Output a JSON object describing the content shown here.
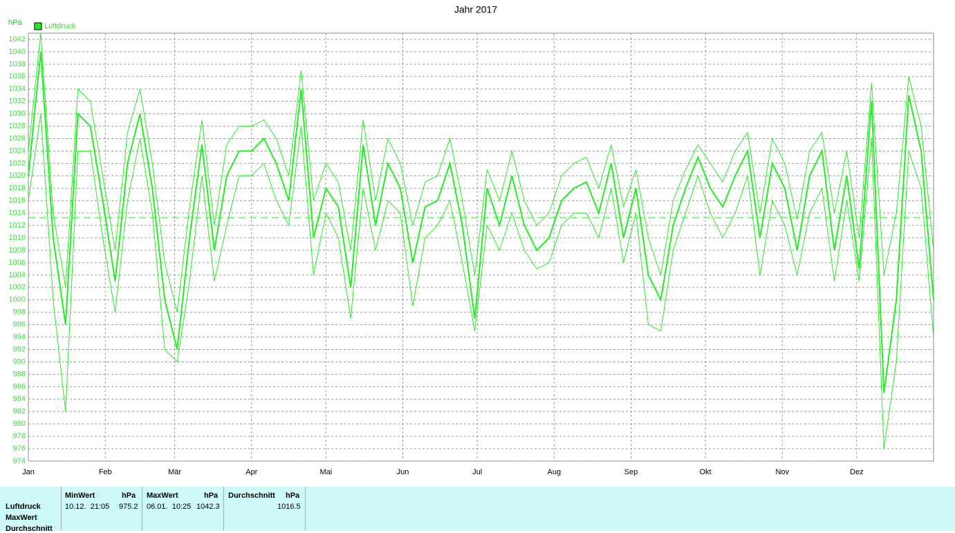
{
  "chart_data": {
    "type": "line",
    "title": "Jahr 2017",
    "ylabel": "hPa",
    "x": [
      0,
      5,
      10,
      15,
      20,
      25,
      30,
      35,
      40,
      45,
      50,
      55,
      60,
      65,
      70,
      75,
      80,
      85,
      90,
      95,
      100,
      105,
      110,
      115,
      120,
      125,
      130,
      135,
      140,
      145,
      150,
      155,
      160,
      165,
      170,
      175,
      180,
      185,
      190,
      195,
      200,
      205,
      210,
      215,
      220,
      225,
      230,
      235,
      240,
      245,
      250,
      255,
      260,
      265,
      270,
      275,
      280,
      285,
      290,
      295,
      300,
      305,
      310,
      315,
      320,
      325,
      330,
      335,
      340,
      345,
      350,
      355,
      360,
      365
    ],
    "series": [
      {
        "name": "Luftdruck",
        "color": "#22ee22",
        "linewidth": 2,
        "values": [
          1020,
          1040,
          1010,
          996,
          1030,
          1028,
          1016,
          1003,
          1022,
          1030,
          1018,
          1000,
          992,
          1010,
          1025,
          1008,
          1020,
          1024,
          1024,
          1026,
          1022,
          1016,
          1034,
          1010,
          1018,
          1015,
          1002,
          1025,
          1012,
          1022,
          1018,
          1006,
          1015,
          1016,
          1022,
          1012,
          997,
          1018,
          1012,
          1020,
          1012,
          1008,
          1010,
          1016,
          1018,
          1019,
          1014,
          1022,
          1010,
          1018,
          1004,
          1000,
          1012,
          1018,
          1023,
          1018,
          1015,
          1020,
          1024,
          1010,
          1022,
          1018,
          1008,
          1020,
          1024,
          1008,
          1020,
          1005,
          1032,
          985,
          1000,
          1033,
          1024,
          1000
        ]
      },
      {
        "color": "#22ee22",
        "linewidth": 1,
        "values": [
          1024,
          1043,
          1014,
          1002,
          1034,
          1032,
          1020,
          1008,
          1027,
          1034,
          1022,
          1006,
          998,
          1015,
          1029,
          1012,
          1025,
          1028,
          1028,
          1029,
          1026,
          1020,
          1037,
          1016,
          1022,
          1019,
          1008,
          1029,
          1016,
          1026,
          1022,
          1012,
          1019,
          1020,
          1026,
          1016,
          1004,
          1021,
          1016,
          1024,
          1016,
          1012,
          1014,
          1020,
          1022,
          1023,
          1018,
          1025,
          1015,
          1021,
          1010,
          1004,
          1016,
          1021,
          1025,
          1022,
          1019,
          1024,
          1027,
          1014,
          1026,
          1022,
          1013,
          1024,
          1027,
          1014,
          1024,
          1010,
          1035,
          1004,
          1014,
          1036,
          1028,
          1008
        ]
      },
      {
        "color": "#22ee22",
        "linewidth": 1,
        "values": [
          1016,
          1030,
          1000,
          982,
          1024,
          1024,
          1010,
          998,
          1016,
          1026,
          1014,
          992,
          990,
          1003,
          1020,
          1003,
          1012,
          1020,
          1020,
          1022,
          1016,
          1012,
          1028,
          1004,
          1014,
          1010,
          997,
          1018,
          1008,
          1016,
          1014,
          999,
          1010,
          1012,
          1016,
          1006,
          995,
          1012,
          1008,
          1014,
          1008,
          1005,
          1006,
          1012,
          1014,
          1014,
          1010,
          1018,
          1006,
          1014,
          996,
          995,
          1008,
          1014,
          1020,
          1014,
          1010,
          1014,
          1020,
          1004,
          1016,
          1012,
          1004,
          1014,
          1018,
          1003,
          1016,
          1003,
          1026,
          976,
          990,
          1024,
          1018,
          994
        ]
      }
    ],
    "ref_line": 1013.25,
    "xlim": [
      0,
      365
    ],
    "xticks": [
      {
        "value": 0,
        "label": "Jan"
      },
      {
        "value": 31,
        "label": "Feb"
      },
      {
        "value": 59,
        "label": "Mär"
      },
      {
        "value": 90,
        "label": "Apr"
      },
      {
        "value": 120,
        "label": "Mai"
      },
      {
        "value": 151,
        "label": "Jun"
      },
      {
        "value": 181,
        "label": "Jul"
      },
      {
        "value": 212,
        "label": "Aug"
      },
      {
        "value": 243,
        "label": "Sep"
      },
      {
        "value": 273,
        "label": "Okt"
      },
      {
        "value": 304,
        "label": "Nov"
      },
      {
        "value": 334,
        "label": "Dez"
      }
    ],
    "ylim": [
      974,
      1043
    ],
    "yticks": [
      974,
      976,
      978,
      980,
      982,
      984,
      986,
      988,
      990,
      992,
      994,
      996,
      998,
      1000,
      1002,
      1004,
      1006,
      1008,
      1010,
      1012,
      1014,
      1016,
      1018,
      1020,
      1022,
      1024,
      1026,
      1028,
      1030,
      1032,
      1034,
      1036,
      1038,
      1040,
      1042
    ],
    "grid": true
  },
  "table": {
    "headers": [
      [
        "MinWert",
        "hPa"
      ],
      [
        "MaxWert",
        "hPa"
      ],
      [
        "Durchschnitt",
        "hPa"
      ]
    ],
    "row_labels": [
      "Luftdruck",
      "MaxWert",
      "Durchschnitt"
    ],
    "rows": [
      [
        "10.12.  21:05",
        "975.2",
        "06.01.  10:25",
        "1042.3",
        "1016.5"
      ]
    ]
  }
}
